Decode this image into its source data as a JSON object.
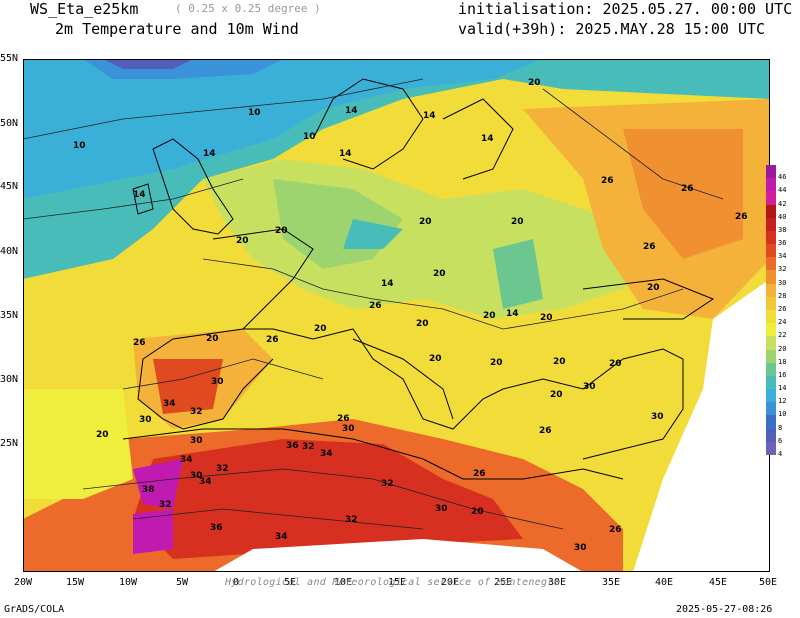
{
  "header": {
    "model": "WS_Eta_e25km",
    "grid": "( 0.25 x 0.25 degree )",
    "product": "2m Temperature and 10m Wind",
    "init": "initialisation: 2025.05.27. 00:00 UTC",
    "valid": "valid(+39h): 2025.MAY.28 15:00 UTC"
  },
  "axes": {
    "lat_labels": [
      "55N",
      "50N",
      "45N",
      "40N",
      "35N",
      "30N",
      "25N"
    ],
    "lon_labels": [
      "20W",
      "15W",
      "10W",
      "5W",
      "0",
      "5E",
      "10E",
      "15E",
      "20E",
      "25E",
      "30E",
      "35E",
      "40E",
      "45E",
      "50E"
    ]
  },
  "colorbar": {
    "levels": [
      "46",
      "44",
      "42",
      "40",
      "38",
      "36",
      "34",
      "32",
      "30",
      "28",
      "26",
      "24",
      "22",
      "20",
      "18",
      "16",
      "14",
      "12",
      "10",
      "8",
      "6",
      "4"
    ],
    "colors": [
      "#9a1a9a",
      "#c01ab0",
      "#d0209a",
      "#b01818",
      "#c42020",
      "#d83020",
      "#e04a20",
      "#ec6a2a",
      "#f09030",
      "#f4b23a",
      "#f2c83a",
      "#f2dc3a",
      "#f0ee3c",
      "#c8e060",
      "#9ed470",
      "#6cc690",
      "#48bcb8",
      "#3ab0d8",
      "#3a92d8",
      "#3a70c8",
      "#5060b8",
      "#7060b8"
    ]
  },
  "contour_labels": [
    "10",
    "10",
    "10",
    "14",
    "14",
    "14",
    "14",
    "14",
    "14",
    "20",
    "20",
    "20",
    "20",
    "20",
    "20",
    "20",
    "20",
    "26",
    "26",
    "26",
    "26",
    "20",
    "20",
    "20",
    "14",
    "20",
    "14",
    "20",
    "26",
    "20",
    "20",
    "26",
    "26",
    "30",
    "34",
    "32",
    "30",
    "20",
    "30",
    "34",
    "30",
    "32",
    "34",
    "38",
    "32",
    "36",
    "36",
    "32",
    "34",
    "26",
    "30",
    "26",
    "30",
    "32",
    "30",
    "32",
    "34",
    "26",
    "30",
    "20",
    "26",
    "20",
    "20",
    "30"
  ],
  "footer": {
    "left": "GrADS/COLA",
    "right": "2025-05-27-08:26",
    "credit": "Hydrological and Meteorological service of Montenegro"
  }
}
